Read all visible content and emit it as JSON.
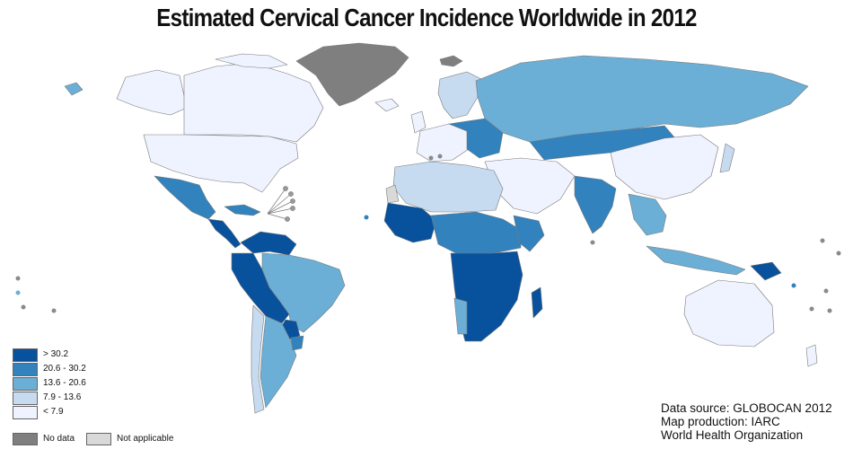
{
  "title": "Estimated Cervical Cancer Incidence Worldwide in 2012",
  "colors": {
    "c1": "#08519c",
    "c2": "#3182bd",
    "c3": "#6baed6",
    "c4": "#c6dbef",
    "c5": "#eff3ff",
    "nodata": "#7f7f7f",
    "notapplicable": "#d9d9d9",
    "border": "#7a7a7a"
  },
  "legend": [
    {
      "label": ">  30.2",
      "color_key": "c1"
    },
    {
      "label": "20.6  -  30.2",
      "color_key": "c2"
    },
    {
      "label": "13.6  -  20.6",
      "color_key": "c3"
    },
    {
      "label": "7.9  -  13.6",
      "color_key": "c4"
    },
    {
      "label": "<  7.9",
      "color_key": "c5"
    }
  ],
  "special_legend": {
    "no_data": "No data",
    "not_applicable": "Not applicable"
  },
  "source": {
    "line1": "Data source: GLOBOCAN 2012",
    "line2": "Map production: IARC",
    "line3": "World Health Organization"
  }
}
